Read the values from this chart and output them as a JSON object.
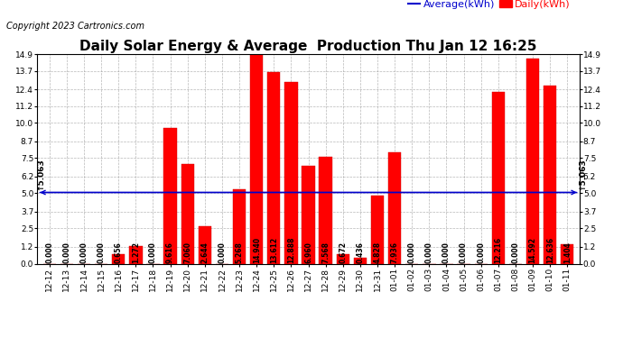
{
  "title": "Daily Solar Energy & Average  Production Thu Jan 12 16:25",
  "copyright": "Copyright 2023 Cartronics.com",
  "legend_average": "Average(kWh)",
  "legend_daily": "Daily(kWh)",
  "average_value": 5.063,
  "categories": [
    "12-12",
    "12-13",
    "12-14",
    "12-15",
    "12-16",
    "12-17",
    "12-18",
    "12-19",
    "12-20",
    "12-21",
    "12-22",
    "12-23",
    "12-24",
    "12-25",
    "12-26",
    "12-27",
    "12-28",
    "12-29",
    "12-30",
    "12-31",
    "01-01",
    "01-02",
    "01-03",
    "01-04",
    "01-05",
    "01-06",
    "01-07",
    "01-08",
    "01-09",
    "01-10",
    "01-11"
  ],
  "values": [
    0.0,
    0.0,
    0.0,
    0.0,
    0.656,
    1.272,
    0.0,
    9.616,
    7.06,
    2.644,
    0.0,
    5.268,
    14.94,
    13.612,
    12.888,
    6.96,
    7.568,
    0.672,
    0.436,
    4.828,
    7.936,
    0.0,
    0.0,
    0.0,
    0.0,
    0.0,
    12.216,
    0.0,
    14.592,
    12.636,
    1.404
  ],
  "bar_color": "#ff0000",
  "bar_edge_color": "#cc0000",
  "average_line_color": "#0000cc",
  "title_fontsize": 11,
  "copyright_fontsize": 7,
  "legend_fontsize": 8,
  "tick_label_fontsize": 6.5,
  "value_label_fontsize": 5.5,
  "ylim": [
    0.0,
    14.9
  ],
  "yticks": [
    0.0,
    1.2,
    2.5,
    3.7,
    5.0,
    6.2,
    7.5,
    8.7,
    10.0,
    11.2,
    12.4,
    13.7,
    14.9
  ],
  "background_color": "#ffffff",
  "grid_color": "#999999"
}
